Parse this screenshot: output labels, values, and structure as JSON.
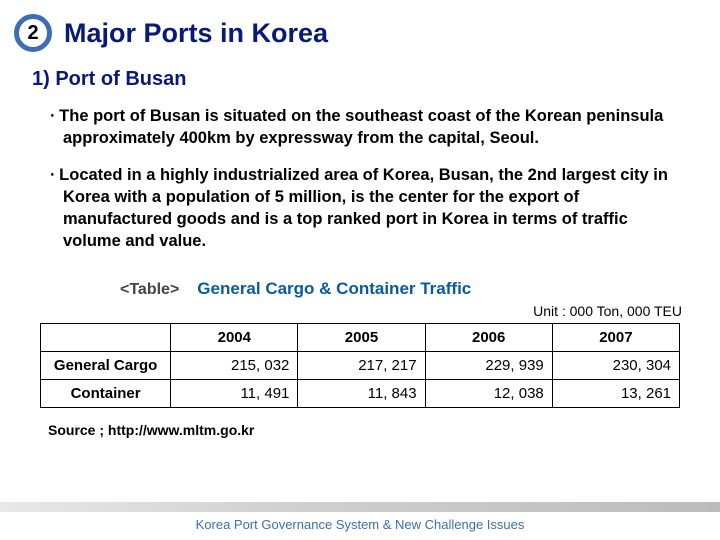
{
  "header": {
    "badge_number": "2",
    "title": "Major Ports in Korea",
    "badge_border_color": "#3d6db5",
    "title_color": "#09197a"
  },
  "subtitle": "1) Port of Busan",
  "bullets": [
    "∙ The port of Busan is situated on the southeast coast of the Korean peninsula approximately 400km by expressway from the capital, Seoul.",
    "∙ Located in a highly industrialized area of Korea, Busan,  the 2nd largest city in Korea with a population of 5 million, is the center for the export of manufactured goods and is a top ranked port in Korea in terms of traffic volume and value."
  ],
  "table": {
    "label": "<Table>",
    "caption": "General Cargo & Container Traffic",
    "caption_color": "#0a5aa0",
    "unit": "Unit : 000 Ton, 000 TEU",
    "columns": [
      "2004",
      "2005",
      "2006",
      "2007"
    ],
    "rows": [
      {
        "label": "General Cargo",
        "values": [
          "215, 032",
          "217, 217",
          "229, 939",
          "230, 304"
        ]
      },
      {
        "label": "Container",
        "values": [
          "11, 491",
          "11, 843",
          "12, 038",
          "13, 261"
        ]
      }
    ],
    "border_color": "#000000",
    "header_fontsize": 15,
    "cell_fontsize": 15
  },
  "source": "Source ; http://www.mltm.go.kr",
  "footer": "Korea Port Governance System & New Challenge Issues"
}
